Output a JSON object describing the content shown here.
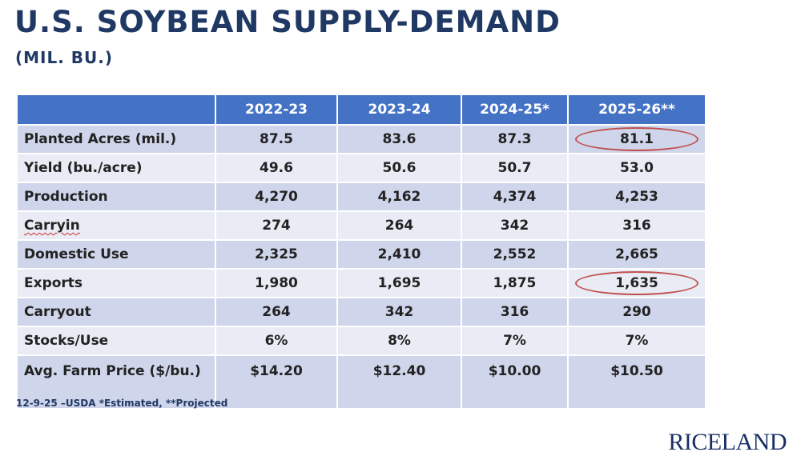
{
  "title": "U.S. SOYBEAN SUPPLY-DEMAND",
  "subtitle": "(MIL. BU.)",
  "table": {
    "header": [
      "",
      "2022-23",
      "2023-24",
      "2024-25*",
      "2025-26**"
    ],
    "rows": [
      {
        "label": "Planted Acres (mil.)",
        "values": [
          "87.5",
          "83.6",
          "87.3",
          "81.1"
        ]
      },
      {
        "label": "Yield (bu./acre)",
        "values": [
          "49.6",
          "50.6",
          "50.7",
          "53.0"
        ]
      },
      {
        "label": "Production",
        "values": [
          "4,270",
          "4,162",
          "4,374",
          "4,253"
        ]
      },
      {
        "label": "Carryin",
        "values": [
          "274",
          "264",
          "342",
          "316"
        ]
      },
      {
        "label": "Domestic Use",
        "values": [
          "2,325",
          "2,410",
          "2,552",
          "2,665"
        ]
      },
      {
        "label": "Exports",
        "values": [
          "1,980",
          "1,695",
          "1,875",
          "1,635"
        ]
      },
      {
        "label": "Carryout",
        "values": [
          "264",
          "342",
          "316",
          "290"
        ]
      },
      {
        "label": "Stocks/Use",
        "values": [
          "6%",
          "8%",
          "7%",
          "7%"
        ]
      },
      {
        "label": "Avg. Farm Price ($/bu.)",
        "values": [
          "$14.20",
          "$12.40",
          "$10.00",
          "$10.50"
        ]
      }
    ]
  },
  "footnote": "12-9-25 –USDA *Estimated, **Projected",
  "logo": "RICELAND",
  "colors": {
    "title": "#1f3864",
    "header_bg": "#4472c4",
    "row_dark": "#cfd5ea",
    "row_light": "#e9ebf5",
    "highlight_ring": "#c0504d"
  }
}
